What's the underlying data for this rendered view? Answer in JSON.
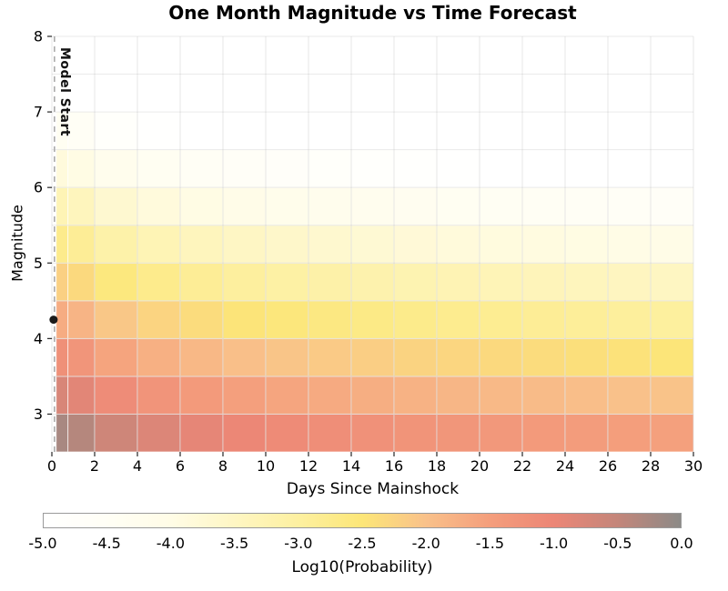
{
  "title": "One Month Magnitude vs Time Forecast",
  "axes": {
    "x_label": "Days Since Mainshock",
    "y_label": "Magnitude",
    "x_ticks": [
      0,
      2,
      4,
      6,
      8,
      10,
      12,
      14,
      16,
      18,
      20,
      22,
      24,
      26,
      28,
      30
    ],
    "y_ticks": [
      3,
      4,
      5,
      6,
      7,
      8
    ]
  },
  "annotations": {
    "model_start_label": "Model Start",
    "model_start_time": 0.12,
    "mainshock": {
      "time": 0.08,
      "magnitude": 4.25
    }
  },
  "colorbar": {
    "label": "Log10(Probability)",
    "min": -5.0,
    "max": 0.0,
    "ticks": [
      -5.0,
      -4.5,
      -4.0,
      -3.5,
      -3.0,
      -2.5,
      -2.0,
      -1.5,
      -1.0,
      -0.5,
      0.0
    ],
    "tick_labels": [
      "-5.0",
      "-4.5",
      "-4.0",
      "-3.5",
      "-3.0",
      "-2.5",
      "-2.0",
      "-1.5",
      "-1.0",
      "-0.5",
      "0.0"
    ],
    "stops": [
      [
        -5.0,
        "#ffffff"
      ],
      [
        -4.5,
        "#fffef5"
      ],
      [
        -4.0,
        "#fffce6"
      ],
      [
        -3.5,
        "#fef6c3"
      ],
      [
        -3.0,
        "#fdf0a0"
      ],
      [
        -2.5,
        "#fce678"
      ],
      [
        -2.0,
        "#f9c18a"
      ],
      [
        -1.5,
        "#f49e7c"
      ],
      [
        -1.0,
        "#ec8676"
      ],
      [
        -0.5,
        "#c4867a"
      ],
      [
        0.0,
        "#8c8a87"
      ]
    ]
  },
  "chart_data": {
    "type": "heatmap",
    "title": "One Month Magnitude vs Time Forecast",
    "xlabel": "Days Since Mainshock",
    "ylabel": "Magnitude",
    "zlabel": "Log10(Probability)",
    "xlim": [
      0,
      30
    ],
    "ylim": [
      2.5,
      8
    ],
    "zlim": [
      -5,
      0
    ],
    "x_edges": [
      0.2,
      0.75,
      2,
      4,
      6,
      8,
      10,
      12,
      14,
      16,
      18,
      20,
      22,
      24,
      26,
      28,
      30
    ],
    "y_edges": [
      2.5,
      3.0,
      3.5,
      4.0,
      4.5,
      5.0,
      5.5,
      6.0,
      6.5,
      7.0,
      7.5,
      8.0
    ],
    "values": [
      [
        -0.25,
        -0.37,
        -0.63,
        -0.8,
        -0.92,
        -1.02,
        -1.1,
        -1.17,
        -1.23,
        -1.29,
        -1.34,
        -1.38,
        -1.42,
        -1.46,
        -1.5,
        -1.53
      ],
      [
        -0.75,
        -0.87,
        -1.13,
        -1.3,
        -1.42,
        -1.52,
        -1.6,
        -1.67,
        -1.73,
        -1.79,
        -1.84,
        -1.88,
        -1.92,
        -1.96,
        -2.0,
        -2.03
      ],
      [
        -1.2,
        -1.32,
        -1.58,
        -1.75,
        -1.87,
        -1.97,
        -2.05,
        -2.12,
        -2.18,
        -2.24,
        -2.29,
        -2.33,
        -2.37,
        -2.41,
        -2.45,
        -2.48
      ],
      [
        -1.7,
        -1.82,
        -2.08,
        -2.25,
        -2.37,
        -2.47,
        -2.55,
        -2.62,
        -2.68,
        -2.74,
        -2.79,
        -2.83,
        -2.87,
        -2.91,
        -2.95,
        -2.98
      ],
      [
        -2.2,
        -2.32,
        -2.58,
        -2.75,
        -2.87,
        -2.97,
        -3.05,
        -3.12,
        -3.18,
        -3.24,
        -3.29,
        -3.33,
        -3.37,
        -3.41,
        -3.45,
        -3.48
      ],
      [
        -2.75,
        -2.87,
        -3.13,
        -3.3,
        -3.42,
        -3.52,
        -3.6,
        -3.67,
        -3.73,
        -3.79,
        -3.84,
        -3.88,
        -3.92,
        -3.96,
        -4.0,
        -4.03
      ],
      [
        -3.3,
        -3.42,
        -3.68,
        -3.85,
        -3.97,
        -4.07,
        -4.15,
        -4.22,
        -4.28,
        -4.34,
        -4.39,
        -4.43,
        -4.47,
        -4.51,
        -4.55,
        -4.58
      ],
      [
        -3.85,
        -3.97,
        -4.23,
        -4.4,
        -4.52,
        -4.62,
        -4.7,
        -4.77,
        -4.83,
        -4.89,
        -4.94,
        -4.98,
        -5.02,
        -5.06,
        -5.1,
        -5.13
      ],
      [
        -4.4,
        -4.52,
        -4.78,
        -4.95,
        -5.07,
        -5.17,
        -5.25,
        -5.32,
        -5.38,
        -5.44,
        -5.49,
        -5.53,
        -5.57,
        -5.61,
        -5.65,
        -5.68
      ],
      [
        -4.95,
        -5.07,
        -5.33,
        -5.5,
        -5.62,
        -5.72,
        -5.8,
        -5.87,
        -5.93,
        -5.99,
        -6.04,
        -6.08,
        -6.12,
        -6.16,
        -6.2,
        -6.23
      ],
      [
        -5.5,
        -5.62,
        -5.88,
        -6.05,
        -6.17,
        -6.27,
        -6.35,
        -6.42,
        -6.48,
        -6.54,
        -6.59,
        -6.63,
        -6.67,
        -6.71,
        -6.75,
        -6.78
      ]
    ]
  }
}
